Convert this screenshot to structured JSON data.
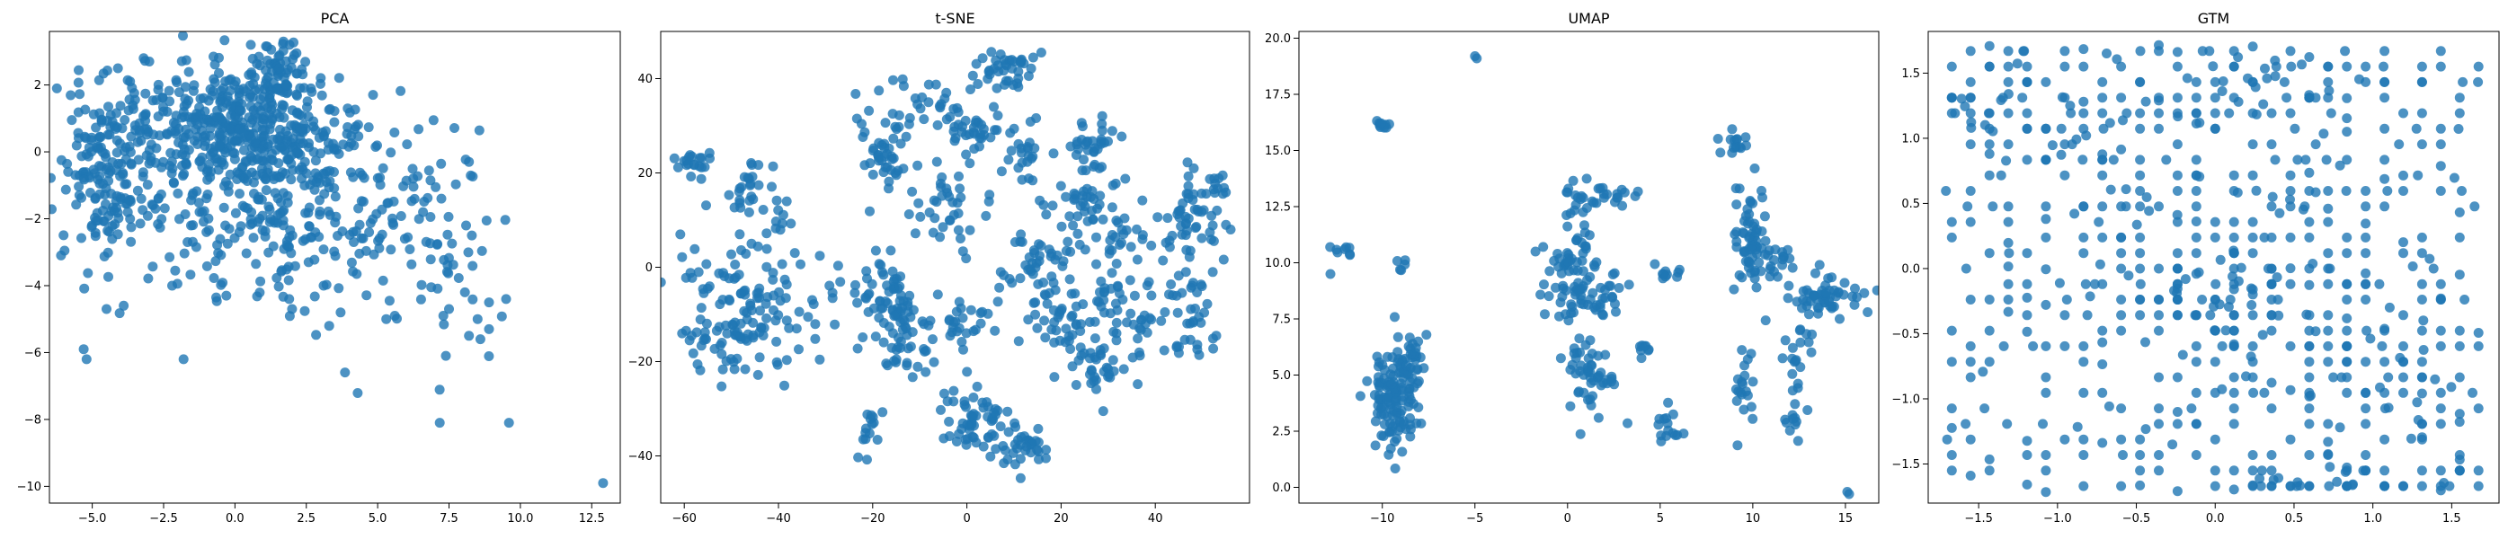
{
  "chart_data": [
    {
      "type": "scatter",
      "title": "PCA",
      "xlabel": "",
      "ylabel": "",
      "xlim": [
        -6.5,
        13.5
      ],
      "ylim": [
        -10.5,
        3.6
      ],
      "xticks": [
        -5.0,
        -2.5,
        0.0,
        2.5,
        5.0,
        7.5,
        10.0,
        12.5
      ],
      "xtick_labels": [
        "−5.0",
        "−2.5",
        "0.0",
        "2.5",
        "5.0",
        "7.5",
        "10.0",
        "12.5"
      ],
      "yticks": [
        -10,
        -8,
        -6,
        -4,
        -2,
        0,
        2
      ],
      "ytick_labels": [
        "−10",
        "−8",
        "−6",
        "−4",
        "−2",
        "0",
        "2"
      ],
      "grid": false,
      "clusters": [
        {
          "cx": 0.5,
          "cy": 0.6,
          "sx": 1.6,
          "sy": 1.0,
          "n": 420
        },
        {
          "cx": -4.5,
          "cy": -0.7,
          "sx": 0.9,
          "sy": 1.4,
          "n": 170
        },
        {
          "cx": 3.8,
          "cy": -1.5,
          "sx": 1.9,
          "sy": 1.7,
          "n": 180
        },
        {
          "cx": 1.6,
          "cy": 2.5,
          "sx": 0.35,
          "sy": 0.45,
          "n": 40
        },
        {
          "cx": -2.5,
          "cy": 0.8,
          "sx": 1.2,
          "sy": 1.0,
          "n": 80
        },
        {
          "cx": 0.0,
          "cy": -2.5,
          "sx": 1.3,
          "sy": 1.0,
          "n": 70
        },
        {
          "cx": 7.5,
          "cy": -3.0,
          "sx": 1.1,
          "sy": 1.7,
          "n": 45
        }
      ],
      "points": [
        {
          "x": 12.9,
          "y": -9.9
        },
        {
          "x": 9.6,
          "y": -8.1
        },
        {
          "x": -5.2,
          "y": -6.2
        },
        {
          "x": -5.3,
          "y": -5.9
        },
        {
          "x": -1.8,
          "y": -6.2
        },
        {
          "x": 7.5,
          "y": -4.7
        },
        {
          "x": 7.3,
          "y": -4.9
        },
        {
          "x": 8.2,
          "y": -5.5
        },
        {
          "x": 8.6,
          "y": -5.6
        },
        {
          "x": 8.9,
          "y": -5.3
        },
        {
          "x": 9.5,
          "y": -4.4
        },
        {
          "x": 8.9,
          "y": -4.5
        },
        {
          "x": 8.5,
          "y": -5.0
        },
        {
          "x": 3.3,
          "y": -5.2
        },
        {
          "x": 3.7,
          "y": -4.8
        },
        {
          "x": 1.9,
          "y": -4.4
        },
        {
          "x": -0.3,
          "y": -4.3
        },
        {
          "x": -2.2,
          "y": -4.0
        },
        {
          "x": -4.5,
          "y": -4.7
        },
        {
          "x": -3.9,
          "y": -4.6
        },
        {
          "x": 5.3,
          "y": -5.0
        },
        {
          "x": 5.6,
          "y": -4.9
        },
        {
          "x": 8.1,
          "y": -2.2
        },
        {
          "x": 8.3,
          "y": -2.5
        },
        {
          "x": 8.2,
          "y": -0.3
        },
        {
          "x": -3.2,
          "y": 2.8
        },
        {
          "x": -3.0,
          "y": 2.7
        },
        {
          "x": -4.1,
          "y": 2.5
        },
        {
          "x": 1.7,
          "y": 3.3
        }
      ]
    },
    {
      "type": "scatter",
      "title": "t-SNE",
      "xlabel": "",
      "ylabel": "",
      "xlim": [
        -65,
        60
      ],
      "ylim": [
        -50,
        50
      ],
      "xticks": [
        -60,
        -40,
        -20,
        0,
        20,
        40
      ],
      "xtick_labels": [
        "−60",
        "−40",
        "−20",
        "0",
        "20",
        "40"
      ],
      "yticks": [
        -40,
        -20,
        0,
        20,
        40
      ],
      "ytick_labels": [
        "−40",
        "−20",
        "0",
        "20",
        "40"
      ],
      "grid": false,
      "clusters": [
        {
          "cx": -47,
          "cy": -9,
          "sx": 8,
          "sy": 7,
          "n": 150
        },
        {
          "cx": -58,
          "cy": 22,
          "sx": 2,
          "sy": 2,
          "n": 20
        },
        {
          "cx": -46,
          "cy": 17,
          "sx": 2.5,
          "sy": 3,
          "n": 25
        },
        {
          "cx": -40,
          "cy": 10,
          "sx": 1.5,
          "sy": 2,
          "n": 10
        },
        {
          "cx": -18,
          "cy": -5,
          "sx": 3.5,
          "sy": 5,
          "n": 60
        },
        {
          "cx": -13,
          "cy": -15,
          "sx": 3,
          "sy": 5,
          "n": 40
        },
        {
          "cx": -17,
          "cy": 23,
          "sx": 3,
          "sy": 4,
          "n": 40
        },
        {
          "cx": -10,
          "cy": 35,
          "sx": 5,
          "sy": 3,
          "n": 30
        },
        {
          "cx": -4,
          "cy": 12,
          "sx": 4,
          "sy": 4,
          "n": 35
        },
        {
          "cx": -20,
          "cy": -35,
          "sx": 1.5,
          "sy": 2.5,
          "n": 15
        },
        {
          "cx": 2,
          "cy": -32,
          "sx": 4,
          "sy": 4,
          "n": 55
        },
        {
          "cx": 12,
          "cy": -38,
          "sx": 3,
          "sy": 3,
          "n": 35
        },
        {
          "cx": 0,
          "cy": -12,
          "sx": 3,
          "sy": 3,
          "n": 25
        },
        {
          "cx": 8,
          "cy": 42,
          "sx": 3,
          "sy": 2,
          "n": 40
        },
        {
          "cx": 1,
          "cy": 28,
          "sx": 3,
          "sy": 3,
          "n": 35
        },
        {
          "cx": 12,
          "cy": 25,
          "sx": 2,
          "sy": 3,
          "n": 20
        },
        {
          "cx": 16,
          "cy": 3,
          "sx": 5,
          "sy": 5,
          "n": 50
        },
        {
          "cx": 20,
          "cy": -12,
          "sx": 4,
          "sy": 4,
          "n": 45
        },
        {
          "cx": 28,
          "cy": -22,
          "sx": 3,
          "sy": 3,
          "n": 30
        },
        {
          "cx": 27,
          "cy": 26,
          "sx": 2.5,
          "sy": 3,
          "n": 35
        },
        {
          "cx": 24,
          "cy": 13,
          "sx": 5,
          "sy": 3,
          "n": 40
        },
        {
          "cx": 33,
          "cy": 5,
          "sx": 3,
          "sy": 3,
          "n": 20
        },
        {
          "cx": 36,
          "cy": -12,
          "sx": 3,
          "sy": 5,
          "n": 30
        },
        {
          "cx": 47,
          "cy": 10,
          "sx": 3,
          "sy": 5,
          "n": 45
        },
        {
          "cx": 47,
          "cy": -10,
          "sx": 3,
          "sy": 5,
          "n": 40
        },
        {
          "cx": 52,
          "cy": 17,
          "sx": 2,
          "sy": 2,
          "n": 15
        },
        {
          "cx": 30,
          "cy": -5,
          "sx": 2,
          "sy": 3,
          "n": 15
        }
      ],
      "points": [
        {
          "x": 55,
          "y": 9
        },
        {
          "x": 56,
          "y": 8
        }
      ]
    },
    {
      "type": "scatter",
      "title": "UMAP",
      "xlabel": "",
      "ylabel": "",
      "xlim": [
        -14.5,
        16.8
      ],
      "ylim": [
        -0.7,
        20.3
      ],
      "xticks": [
        -10,
        -5,
        0,
        5,
        10,
        15
      ],
      "xtick_labels": [
        "−10",
        "−5",
        "0",
        "5",
        "10",
        "15"
      ],
      "yticks": [
        0.0,
        2.5,
        5.0,
        7.5,
        10.0,
        12.5,
        15.0,
        17.5,
        20.0
      ],
      "ytick_labels": [
        "0.0",
        "2.5",
        "5.0",
        "7.5",
        "10.0",
        "12.5",
        "15.0",
        "17.5",
        "20.0"
      ],
      "grid": false,
      "clusters": [
        {
          "cx": -9.3,
          "cy": 4.0,
          "sx": 0.7,
          "sy": 1.2,
          "n": 130
        },
        {
          "cx": -8.4,
          "cy": 5.8,
          "sx": 0.3,
          "sy": 0.5,
          "n": 25
        },
        {
          "cx": -10.1,
          "cy": 16.1,
          "sx": 0.2,
          "sy": 0.15,
          "n": 10
        },
        {
          "cx": -12.1,
          "cy": 10.7,
          "sx": 0.5,
          "sy": 0.2,
          "n": 8
        },
        {
          "cx": -8.9,
          "cy": 9.9,
          "sx": 0.15,
          "sy": 0.15,
          "n": 5
        },
        {
          "cx": 0.5,
          "cy": 9.0,
          "sx": 1.0,
          "sy": 1.0,
          "n": 80
        },
        {
          "cx": 1.3,
          "cy": 5.0,
          "sx": 0.6,
          "sy": 0.9,
          "n": 50
        },
        {
          "cx": 0.6,
          "cy": 12.0,
          "sx": 0.5,
          "sy": 1.0,
          "n": 20
        },
        {
          "cx": 2.1,
          "cy": 13.0,
          "sx": 0.8,
          "sy": 0.5,
          "n": 20
        },
        {
          "cx": 5.5,
          "cy": 2.5,
          "sx": 0.5,
          "sy": 0.4,
          "n": 15
        },
        {
          "cx": 5.5,
          "cy": 9.4,
          "sx": 0.4,
          "sy": 0.2,
          "n": 10
        },
        {
          "cx": 9.8,
          "cy": 11.0,
          "sx": 0.5,
          "sy": 1.2,
          "n": 60
        },
        {
          "cx": 9.0,
          "cy": 15.2,
          "sx": 0.3,
          "sy": 0.4,
          "n": 15
        },
        {
          "cx": 13.8,
          "cy": 8.5,
          "sx": 1.1,
          "sy": 0.5,
          "n": 55
        },
        {
          "cx": 12.5,
          "cy": 6.0,
          "sx": 0.5,
          "sy": 1.0,
          "n": 20
        },
        {
          "cx": 12.2,
          "cy": 3.0,
          "sx": 0.3,
          "sy": 0.7,
          "n": 10
        },
        {
          "cx": 9.4,
          "cy": 4.5,
          "sx": 0.4,
          "sy": 0.8,
          "n": 20
        },
        {
          "cx": 11.0,
          "cy": 10.0,
          "sx": 0.6,
          "sy": 0.4,
          "n": 20
        },
        {
          "cx": 3.9,
          "cy": 6.1,
          "sx": 0.2,
          "sy": 0.3,
          "n": 8
        },
        {
          "cx": 2.5,
          "cy": 8.7,
          "sx": 0.3,
          "sy": 0.5,
          "n": 10
        }
      ],
      "points": [
        {
          "x": -5.0,
          "y": 19.2
        },
        {
          "x": -4.9,
          "y": 19.1
        },
        {
          "x": -12.8,
          "y": 9.5
        },
        {
          "x": 15.1,
          "y": -0.2
        },
        {
          "x": 15.2,
          "y": -0.3
        },
        {
          "x": 16.2,
          "y": 7.8
        }
      ]
    },
    {
      "type": "scatter",
      "title": "GTM",
      "xlabel": "",
      "ylabel": "",
      "xlim": [
        -1.82,
        1.8
      ],
      "ylim": [
        -1.8,
        1.82
      ],
      "xticks": [
        -1.5,
        -1.0,
        -0.5,
        0.0,
        0.5,
        1.0,
        1.5
      ],
      "xtick_labels": [
        "−1.5",
        "−1.0",
        "−0.5",
        "0.0",
        "0.5",
        "1.0",
        "1.5"
      ],
      "yticks": [
        -1.5,
        -1.0,
        -0.5,
        0.0,
        0.5,
        1.0,
        1.5
      ],
      "ytick_labels": [
        "−1.5",
        "−1.0",
        "−0.5",
        "0.0",
        "0.5",
        "1.0",
        "1.5"
      ],
      "grid": false,
      "lattice": {
        "min": -1.67,
        "max": 1.67,
        "n": 29,
        "fill_fraction": 0.5
      },
      "clusters": [
        {
          "cx": 0.1,
          "cy": -0.1,
          "sx": 0.45,
          "sy": 0.5,
          "n": 120
        },
        {
          "cx": 0.3,
          "cy": 1.45,
          "sx": 0.7,
          "sy": 0.15,
          "n": 50
        },
        {
          "cx": 0.75,
          "cy": -1.65,
          "sx": 0.5,
          "sy": 0.08,
          "n": 40
        },
        {
          "cx": -1.4,
          "cy": 1.3,
          "sx": 0.2,
          "sy": 0.25,
          "n": 25
        },
        {
          "cx": 1.25,
          "cy": -0.9,
          "sx": 0.2,
          "sy": 0.4,
          "n": 30
        },
        {
          "cx": -0.8,
          "cy": 0.9,
          "sx": 0.3,
          "sy": 0.3,
          "n": 25
        }
      ],
      "points": []
    }
  ]
}
